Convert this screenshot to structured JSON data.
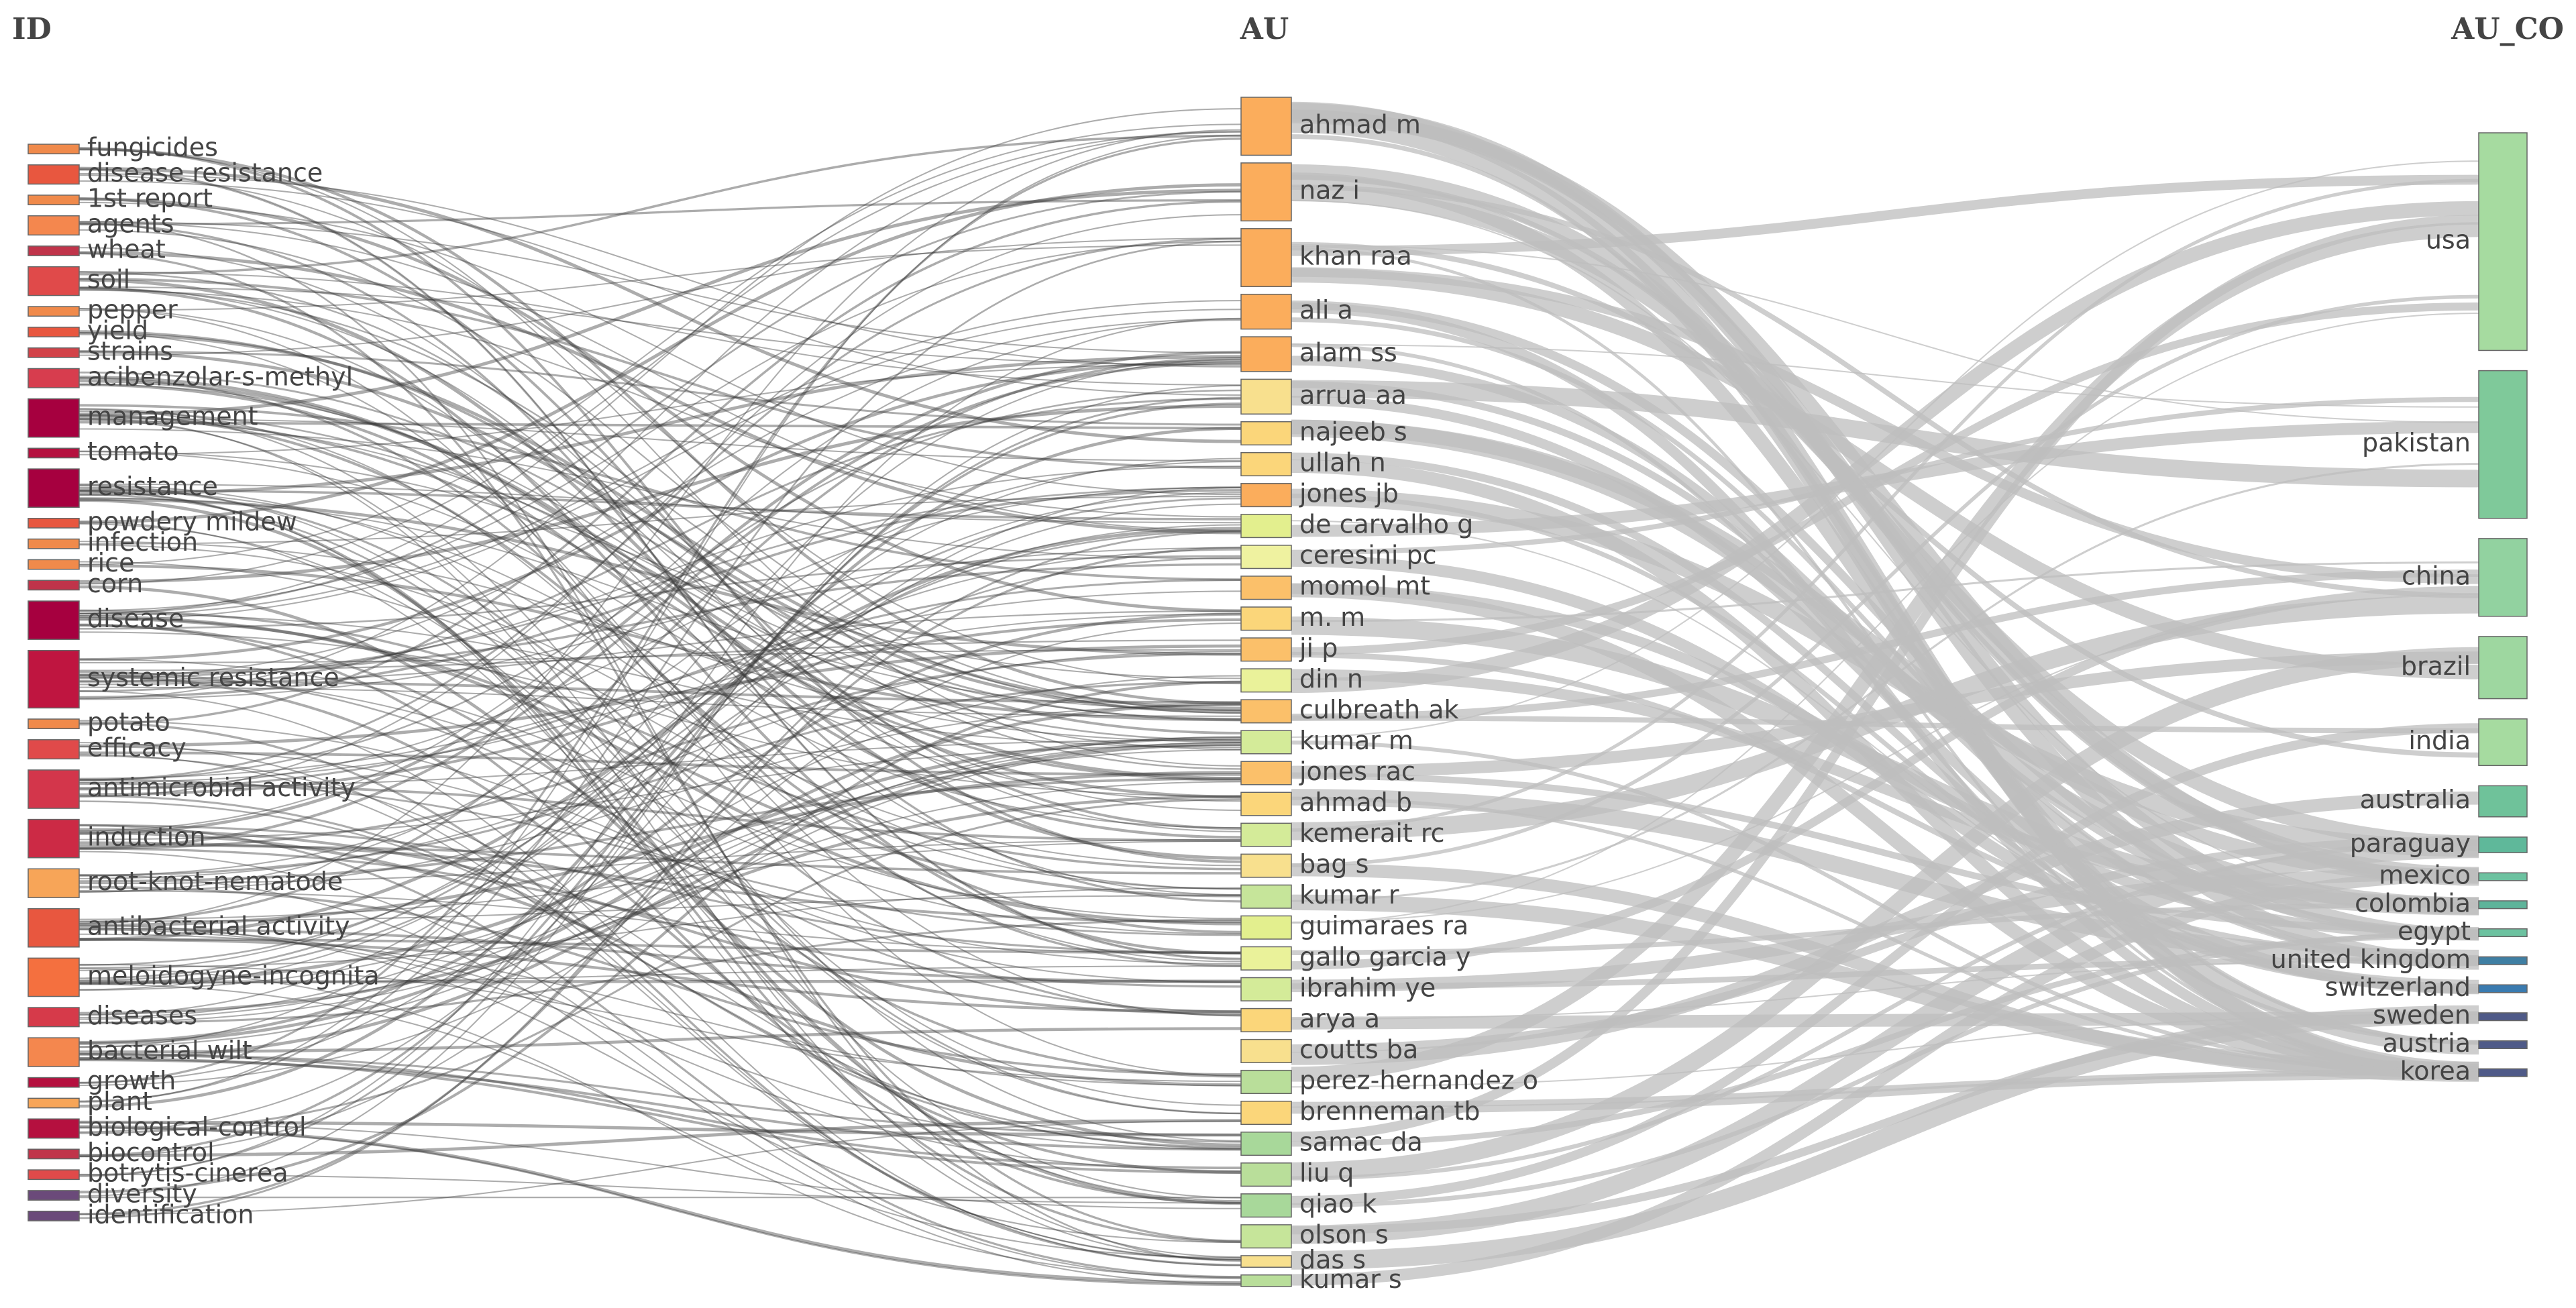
{
  "titles": {
    "left": "ID",
    "middle": "AU",
    "right": "AU_CO"
  },
  "chart_data": {
    "type": "sankey",
    "columns": [
      {
        "name": "ID",
        "nodes": [
          {
            "label": "fungicides",
            "color": "#f08a4b",
            "weight": 1
          },
          {
            "label": "disease resistance",
            "color": "#e8573f",
            "weight": 2
          },
          {
            "label": "1st report",
            "color": "#f08a4b",
            "weight": 1
          },
          {
            "label": "agents",
            "color": "#f4874e",
            "weight": 2
          },
          {
            "label": "wheat",
            "color": "#c0344a",
            "weight": 1
          },
          {
            "label": "soil",
            "color": "#e04a4a",
            "weight": 3
          },
          {
            "label": "pepper",
            "color": "#f08a4b",
            "weight": 1
          },
          {
            "label": "yield",
            "color": "#e8573f",
            "weight": 1
          },
          {
            "label": "strains",
            "color": "#d24248",
            "weight": 1
          },
          {
            "label": "acibenzolar-s-methyl",
            "color": "#d73d4e",
            "weight": 2
          },
          {
            "label": "management",
            "color": "#a6003f",
            "weight": 4
          },
          {
            "label": "tomato",
            "color": "#b5103f",
            "weight": 1
          },
          {
            "label": "resistance",
            "color": "#a6003f",
            "weight": 4
          },
          {
            "label": "powdery mildew",
            "color": "#e8573f",
            "weight": 1
          },
          {
            "label": "infection",
            "color": "#f08a4b",
            "weight": 1
          },
          {
            "label": "rice",
            "color": "#f08a4b",
            "weight": 1
          },
          {
            "label": "corn",
            "color": "#c0344a",
            "weight": 1
          },
          {
            "label": "disease",
            "color": "#a6003f",
            "weight": 4
          },
          {
            "label": "systemic resistance",
            "color": "#bf1540",
            "weight": 6
          },
          {
            "label": "potato",
            "color": "#f08a4b",
            "weight": 1
          },
          {
            "label": "efficacy",
            "color": "#e04a4a",
            "weight": 2
          },
          {
            "label": "antimicrobial activity",
            "color": "#d3364b",
            "weight": 4
          },
          {
            "label": "induction",
            "color": "#cc2a45",
            "weight": 4
          },
          {
            "label": "root-knot-nematode",
            "color": "#f7a558",
            "weight": 3
          },
          {
            "label": "antibacterial activity",
            "color": "#e8573f",
            "weight": 4
          },
          {
            "label": "meloidogyne-incognita",
            "color": "#f4703f",
            "weight": 4
          },
          {
            "label": "diseases",
            "color": "#d63a4a",
            "weight": 2
          },
          {
            "label": "bacterial wilt",
            "color": "#f4874e",
            "weight": 3
          },
          {
            "label": "growth",
            "color": "#b5103f",
            "weight": 1
          },
          {
            "label": "plant",
            "color": "#f7a558",
            "weight": 1
          },
          {
            "label": "biological-control",
            "color": "#b5103f",
            "weight": 2
          },
          {
            "label": "biocontrol",
            "color": "#c0344a",
            "weight": 1
          },
          {
            "label": "botrytis-cinerea",
            "color": "#e04a4a",
            "weight": 1
          },
          {
            "label": "diversity",
            "color": "#6b4a7a",
            "weight": 1
          },
          {
            "label": "identification",
            "color": "#6b4a7a",
            "weight": 1
          }
        ]
      },
      {
        "name": "AU",
        "nodes": [
          {
            "label": "ahmad m",
            "color": "#fbad5c",
            "weight": 5
          },
          {
            "label": "naz i",
            "color": "#fbad5c",
            "weight": 5
          },
          {
            "label": "khan raa",
            "color": "#fbad5c",
            "weight": 5
          },
          {
            "label": "ali a",
            "color": "#fbad5c",
            "weight": 3
          },
          {
            "label": "alam ss",
            "color": "#fbad5c",
            "weight": 3
          },
          {
            "label": "arrua aa",
            "color": "#f8e08e",
            "weight": 3
          },
          {
            "label": "najeeb s",
            "color": "#fbd67a",
            "weight": 2
          },
          {
            "label": "ullah n",
            "color": "#fbd67a",
            "weight": 2
          },
          {
            "label": "jones jb",
            "color": "#fbad5c",
            "weight": 2
          },
          {
            "label": "de carvalho g",
            "color": "#e3ef8e",
            "weight": 2
          },
          {
            "label": "ceresini pc",
            "color": "#eff2a0",
            "weight": 2
          },
          {
            "label": "momol mt",
            "color": "#fbc06a",
            "weight": 2
          },
          {
            "label": "m. m",
            "color": "#fbd67a",
            "weight": 2
          },
          {
            "label": "ji p",
            "color": "#fbc06a",
            "weight": 2
          },
          {
            "label": "din n",
            "color": "#eaf29a",
            "weight": 2
          },
          {
            "label": "culbreath ak",
            "color": "#fbc06a",
            "weight": 2
          },
          {
            "label": "kumar m",
            "color": "#d4eb99",
            "weight": 2
          },
          {
            "label": "jones rac",
            "color": "#fbc06a",
            "weight": 2
          },
          {
            "label": "ahmad b",
            "color": "#fbd67a",
            "weight": 2
          },
          {
            "label": "kemerait rc",
            "color": "#d4eb99",
            "weight": 2
          },
          {
            "label": "bag s",
            "color": "#f8e08e",
            "weight": 2
          },
          {
            "label": "kumar r",
            "color": "#c6e59a",
            "weight": 2
          },
          {
            "label": "guimaraes ra",
            "color": "#e3ef8e",
            "weight": 2
          },
          {
            "label": "gallo garcia y",
            "color": "#eaf29a",
            "weight": 2
          },
          {
            "label": "ibrahim ye",
            "color": "#d4eb99",
            "weight": 2
          },
          {
            "label": "arya a",
            "color": "#fbd67a",
            "weight": 2
          },
          {
            "label": "coutts ba",
            "color": "#f8e08e",
            "weight": 2
          },
          {
            "label": "perez-hernandez o",
            "color": "#b9de9a",
            "weight": 2
          },
          {
            "label": "brenneman tb",
            "color": "#fbd67a",
            "weight": 2
          },
          {
            "label": "samac da",
            "color": "#a8d89a",
            "weight": 2
          },
          {
            "label": "liu q",
            "color": "#b9de9a",
            "weight": 2
          },
          {
            "label": "qiao k",
            "color": "#a8d89a",
            "weight": 2
          },
          {
            "label": "olson s",
            "color": "#c6e59a",
            "weight": 2
          },
          {
            "label": "das s",
            "color": "#f8e08e",
            "weight": 1
          },
          {
            "label": "kumar s",
            "color": "#b9de9a",
            "weight": 1
          }
        ]
      },
      {
        "name": "AU_CO",
        "nodes": [
          {
            "label": "usa",
            "color": "#a6dba0",
            "weight": 28
          },
          {
            "label": "pakistan",
            "color": "#7fc99a",
            "weight": 19
          },
          {
            "label": "china",
            "color": "#92d2a0",
            "weight": 10
          },
          {
            "label": "brazil",
            "color": "#9ed7a0",
            "weight": 8
          },
          {
            "label": "india",
            "color": "#a6dba0",
            "weight": 6
          },
          {
            "label": "australia",
            "color": "#6fc29a",
            "weight": 4
          },
          {
            "label": "paraguay",
            "color": "#5fb89a",
            "weight": 2
          },
          {
            "label": "mexico",
            "color": "#6cc2a0",
            "weight": 1
          },
          {
            "label": "colombia",
            "color": "#5eb49a",
            "weight": 1
          },
          {
            "label": "egypt",
            "color": "#6cc2a0",
            "weight": 1
          },
          {
            "label": "united kingdom",
            "color": "#3f7fa3",
            "weight": 1
          },
          {
            "label": "switzerland",
            "color": "#3a7bb0",
            "weight": 1
          },
          {
            "label": "sweden",
            "color": "#4f5a88",
            "weight": 1
          },
          {
            "label": "austria",
            "color": "#4f5a88",
            "weight": 1
          },
          {
            "label": "korea",
            "color": "#4f5a88",
            "weight": 1
          }
        ]
      }
    ],
    "link_color_left": "#3a3a3a",
    "link_color_right": "#bdbdbd"
  }
}
